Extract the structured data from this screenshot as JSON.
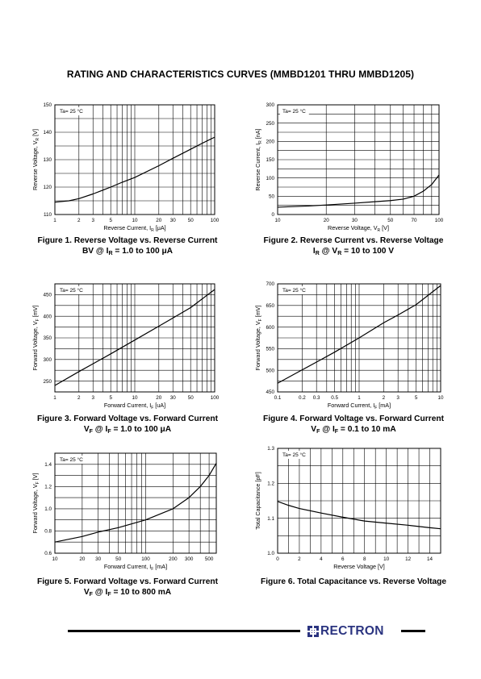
{
  "page": {
    "title": "RATING AND CHARACTERISTICS CURVES (MMBD1201 THRU MMBD1205)",
    "brand": "RECTRON"
  },
  "chart_data": [
    {
      "id": "fig1",
      "type": "line",
      "annotation": "Ta= 25 °C",
      "xlabel": "Reverse Current, I",
      "xlabel_sub": "R",
      "xlabel_unit": " [μA]",
      "ylabel": "Reverse Voltage, V",
      "ylabel_sub": "R",
      "ylabel_unit": " [V]",
      "x_scale": "log",
      "xlim": [
        1,
        100
      ],
      "x_ticks": [
        1,
        2,
        3,
        5,
        10,
        20,
        30,
        50,
        100
      ],
      "x_tick_labels": [
        "1",
        "2",
        "3",
        "5",
        "10",
        "20",
        "30",
        "50",
        "100"
      ],
      "ylim": [
        110,
        150
      ],
      "y_ticks": [
        110,
        120,
        130,
        140,
        150
      ],
      "y_tick_labels": [
        "110",
        "120",
        "130",
        "140",
        "150"
      ],
      "x_grid": [
        1,
        2,
        3,
        4,
        5,
        6,
        7,
        8,
        9,
        10,
        20,
        30,
        40,
        50,
        60,
        70,
        80,
        90,
        100
      ],
      "y_grid": [
        110,
        115,
        120,
        125,
        130,
        135,
        140,
        145,
        150
      ],
      "x": [
        1,
        1.5,
        2,
        3,
        5,
        7,
        10,
        20,
        30,
        50,
        70,
        100
      ],
      "y": [
        114.5,
        115.0,
        115.8,
        117.5,
        120.0,
        121.8,
        123.5,
        127.8,
        130.5,
        133.8,
        136.0,
        138.2
      ],
      "caption": [
        "Figure 1. Reverse Voltage vs. Reverse Current",
        "BV @ I",
        "R",
        " = 1.0 to 100 μA"
      ]
    },
    {
      "id": "fig2",
      "type": "line",
      "annotation": "Ta= 25 °C",
      "xlabel": "Reverse Voltage, V",
      "xlabel_sub": "R",
      "xlabel_unit": " [V]",
      "ylabel": "Reverse Current, I",
      "ylabel_sub": "R",
      "ylabel_unit": " [nA]",
      "x_scale": "log",
      "xlim": [
        10,
        100
      ],
      "x_ticks": [
        10,
        20,
        30,
        50,
        70,
        100
      ],
      "x_tick_labels": [
        "10",
        "20",
        "30",
        "50",
        "70",
        "100"
      ],
      "ylim": [
        0,
        300
      ],
      "y_ticks": [
        0,
        50,
        100,
        150,
        200,
        250,
        300
      ],
      "y_tick_labels": [
        "0",
        "50",
        "100",
        "150",
        "200",
        "250",
        "300"
      ],
      "x_grid": [
        10,
        20,
        30,
        40,
        50,
        60,
        70,
        80,
        90,
        100
      ],
      "y_grid": [
        0,
        25,
        50,
        75,
        100,
        125,
        150,
        175,
        200,
        225,
        250,
        275,
        300
      ],
      "x": [
        10,
        15,
        20,
        30,
        40,
        50,
        60,
        70,
        80,
        90,
        100
      ],
      "y": [
        20,
        23,
        26,
        31,
        35,
        38,
        42,
        50,
        64,
        82,
        108
      ],
      "caption": [
        "Figure 2. Reverse Current vs. Reverse Voltage",
        "I",
        "R",
        " @ V",
        "R",
        " = 10 to 100 V"
      ]
    },
    {
      "id": "fig3",
      "type": "line",
      "annotation": "Ta= 25 °C",
      "xlabel": "Forward Current, I",
      "xlabel_sub": "F",
      "xlabel_unit": " [uA]",
      "ylabel": "Forward Voltage, V",
      "ylabel_sub": "F",
      "ylabel_unit": " [mV]",
      "x_scale": "log",
      "xlim": [
        1,
        100
      ],
      "x_ticks": [
        1,
        2,
        3,
        5,
        10,
        20,
        30,
        50,
        100
      ],
      "x_tick_labels": [
        "1",
        "2",
        "3",
        "5",
        "10",
        "20",
        "30",
        "50",
        "100"
      ],
      "ylim": [
        225,
        475
      ],
      "y_ticks": [
        250,
        300,
        350,
        400,
        450
      ],
      "y_tick_labels": [
        "250",
        "300",
        "350",
        "400",
        "450"
      ],
      "x_grid": [
        1,
        2,
        3,
        4,
        5,
        6,
        7,
        8,
        9,
        10,
        20,
        30,
        40,
        50,
        60,
        70,
        80,
        90,
        100
      ],
      "y_grid": [
        225,
        250,
        275,
        300,
        325,
        350,
        375,
        400,
        425,
        450,
        475
      ],
      "x": [
        1,
        2,
        3,
        5,
        10,
        20,
        30,
        50,
        100
      ],
      "y": [
        240,
        272,
        290,
        313,
        345,
        377,
        396,
        420,
        462
      ],
      "caption": [
        "Figure 3. Forward Voltage vs. Forward Current",
        "V",
        "F",
        " @ I",
        "F",
        " = 1.0 to 100 μA"
      ]
    },
    {
      "id": "fig4",
      "type": "line",
      "annotation": "Ta= 25 °C",
      "xlabel": "Forward Current, I",
      "xlabel_sub": "F",
      "xlabel_unit": " [mA]",
      "ylabel": "Forward Voltage, V",
      "ylabel_sub": "F",
      "ylabel_unit": " [mV]",
      "x_scale": "log",
      "xlim": [
        0.1,
        10
      ],
      "x_ticks": [
        0.1,
        0.2,
        0.3,
        0.5,
        1,
        2,
        3,
        5,
        10
      ],
      "x_tick_labels": [
        "0.1",
        "0.2",
        "0.3",
        "0.5",
        "1",
        "2",
        "3",
        "5",
        "10"
      ],
      "ylim": [
        450,
        700
      ],
      "y_ticks": [
        450,
        500,
        550,
        600,
        650,
        700
      ],
      "y_tick_labels": [
        "450",
        "500",
        "550",
        "600",
        "650",
        "700"
      ],
      "x_grid": [
        0.1,
        0.2,
        0.3,
        0.4,
        0.5,
        0.6,
        0.7,
        0.8,
        0.9,
        1,
        2,
        3,
        4,
        5,
        6,
        7,
        8,
        9,
        10
      ],
      "y_grid": [
        450,
        475,
        500,
        525,
        550,
        575,
        600,
        625,
        650,
        675,
        700
      ],
      "x": [
        0.1,
        0.2,
        0.3,
        0.5,
        1,
        2,
        3,
        5,
        10
      ],
      "y": [
        470,
        501,
        519,
        542,
        575,
        610,
        628,
        652,
        696
      ],
      "caption": [
        "Figure 4. Forward Voltage vs. Forward Current",
        "V",
        "F",
        " @ I",
        "F",
        " = 0.1 to 10 mA"
      ]
    },
    {
      "id": "fig5",
      "type": "line",
      "annotation": "Ta= 25 °C",
      "xlabel": "Forward Current, I",
      "xlabel_sub": "F",
      "xlabel_unit": " [mA]",
      "ylabel": "Forward Voltage, V",
      "ylabel_sub": "F",
      "ylabel_unit": " [V]",
      "x_scale": "log",
      "xlim": [
        10,
        600
      ],
      "x_ticks": [
        10,
        20,
        30,
        50,
        100,
        200,
        300,
        500
      ],
      "x_tick_labels": [
        "10",
        "20",
        "30",
        "50",
        "100",
        "200",
        "300",
        "500"
      ],
      "ylim": [
        0.6,
        1.5
      ],
      "y_ticks": [
        0.6,
        0.8,
        1.0,
        1.2,
        1.4
      ],
      "y_tick_labels": [
        "0.6",
        "0.8",
        "1.0",
        "1.2",
        "1.4"
      ],
      "x_grid": [
        10,
        20,
        30,
        40,
        50,
        60,
        70,
        80,
        90,
        100,
        200,
        300,
        400,
        500,
        600
      ],
      "y_grid": [
        0.6,
        0.7,
        0.8,
        0.9,
        1.0,
        1.1,
        1.2,
        1.3,
        1.4,
        1.5
      ],
      "x": [
        10,
        20,
        30,
        50,
        100,
        200,
        300,
        400,
        500,
        600
      ],
      "y": [
        0.7,
        0.75,
        0.79,
        0.83,
        0.9,
        1.0,
        1.1,
        1.2,
        1.3,
        1.41
      ],
      "caption": [
        "Figure 5. Forward Voltage vs. Forward Current",
        "V",
        "F",
        " @ I",
        "F",
        " = 10 to 800 mA"
      ]
    },
    {
      "id": "fig6",
      "type": "line",
      "annotation": "Ta= 25 °C",
      "xlabel": "Reverse Voltage [V]",
      "ylabel": "Total Capacitance [pF]",
      "x_scale": "linear",
      "xlim": [
        0,
        15
      ],
      "x_ticks": [
        0,
        2,
        4,
        6,
        8,
        10,
        12,
        14
      ],
      "x_tick_labels": [
        "0",
        "2",
        "4",
        "6",
        "8",
        "10",
        "12",
        "14"
      ],
      "ylim": [
        1.0,
        1.3
      ],
      "y_ticks": [
        1.0,
        1.1,
        1.2,
        1.3
      ],
      "y_tick_labels": [
        "1.0",
        "1.1",
        "1.2",
        "1.3"
      ],
      "x_grid": [
        0,
        1,
        2,
        3,
        4,
        5,
        6,
        7,
        8,
        9,
        10,
        11,
        12,
        13,
        14,
        15
      ],
      "y_grid": [
        1.0,
        1.05,
        1.1,
        1.15,
        1.2,
        1.25,
        1.3
      ],
      "x": [
        0,
        1,
        2,
        4,
        6,
        8,
        10,
        12,
        14,
        15
      ],
      "y": [
        1.148,
        1.137,
        1.128,
        1.115,
        1.103,
        1.092,
        1.086,
        1.08,
        1.073,
        1.07
      ],
      "caption": [
        "Figure 6. Total Capacitance vs. Reverse Voltage"
      ]
    }
  ]
}
